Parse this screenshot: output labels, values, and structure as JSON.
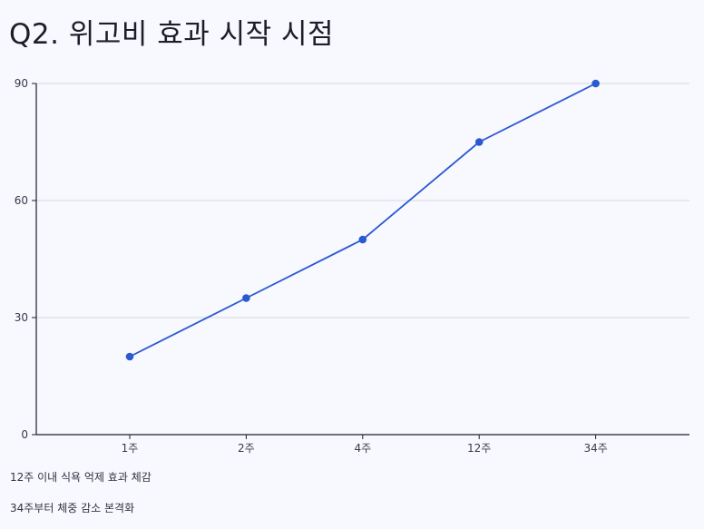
{
  "title": "Q2. 위고비 효과 시작 시점",
  "chart_data": {
    "type": "line",
    "title": "Q2. 위고비 효과 시작 시점",
    "xlabel": "",
    "ylabel": "",
    "categories": [
      "1주",
      "2주",
      "4주",
      "12주",
      "34주"
    ],
    "series": [
      {
        "values": [
          20,
          35,
          50,
          75,
          90
        ]
      }
    ],
    "ylim": [
      0,
      90
    ],
    "yticks": [
      0,
      30,
      60,
      90
    ],
    "grid": true,
    "colors": {
      "line": "#2a59d0",
      "grid": "#d6d6dd",
      "axis": "#1e1e2a"
    }
  },
  "notes": [
    "12주 이내 식욕 억제 효과 체감",
    "34주부터 체중 감소 본격화"
  ]
}
